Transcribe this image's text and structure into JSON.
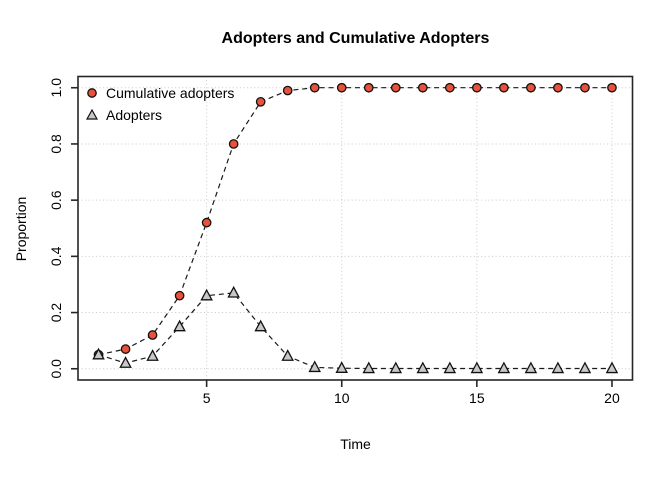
{
  "chart_data": {
    "type": "line",
    "title": "Adopters and Cumulative Adopters",
    "xlabel": "Time",
    "ylabel": "Proportion",
    "x": [
      1,
      2,
      3,
      4,
      5,
      6,
      7,
      8,
      9,
      10,
      11,
      12,
      13,
      14,
      15,
      16,
      17,
      18,
      19,
      20
    ],
    "series": [
      {
        "name": "Cumulative adopters",
        "marker": "circle",
        "color": "#e8513b",
        "values": [
          0.05,
          0.07,
          0.12,
          0.26,
          0.52,
          0.8,
          0.95,
          0.99,
          1.0,
          1.0,
          1.0,
          1.0,
          1.0,
          1.0,
          1.0,
          1.0,
          1.0,
          1.0,
          1.0,
          1.0
        ]
      },
      {
        "name": "Adopters",
        "marker": "triangle",
        "color": "#c8c8c8",
        "values": [
          0.05,
          0.02,
          0.045,
          0.15,
          0.26,
          0.27,
          0.15,
          0.045,
          0.005,
          0.002,
          0.001,
          0.001,
          0.001,
          0.001,
          0.001,
          0.001,
          0.001,
          0.001,
          0.001,
          0.001
        ]
      }
    ],
    "xlim": [
      1,
      20
    ],
    "ylim": [
      0,
      1
    ],
    "x_ticks": [
      5,
      10,
      15,
      20
    ],
    "y_ticks": [
      0,
      0.2,
      0.4,
      0.6,
      0.8,
      1.0
    ],
    "y_tick_labels": [
      "0.0",
      "0.2",
      "0.4",
      "0.6",
      "0.8",
      "1.0"
    ],
    "grid": "dotted",
    "grid_color": "#c9c9c9",
    "line_style": "dashed",
    "line_color": "#1a1a1a",
    "legend_position": "top-left",
    "background": "#ffffff"
  }
}
